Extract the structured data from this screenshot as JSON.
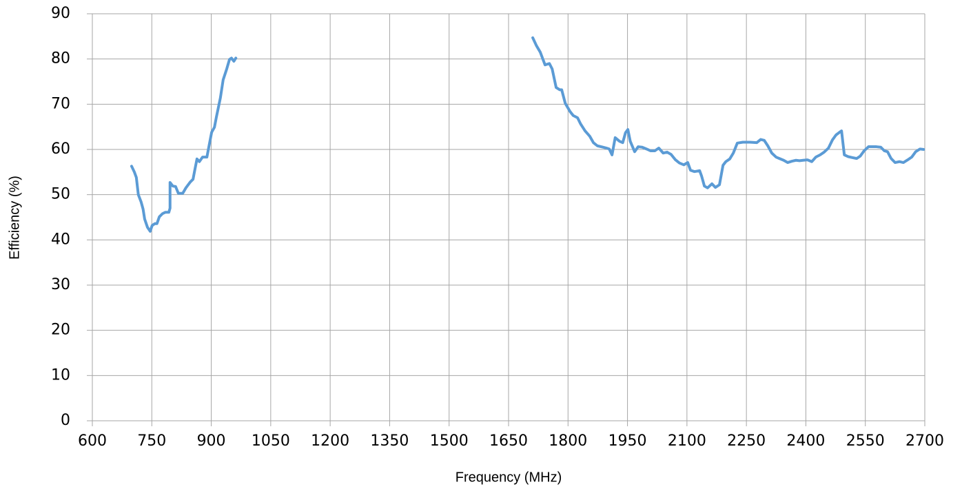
{
  "chart_data": {
    "type": "line",
    "xlabel": "Frequency (MHz)",
    "ylabel": "Efficiency (%)",
    "xlim": [
      600,
      2700
    ],
    "xticks": [
      600,
      750,
      900,
      1050,
      1200,
      1350,
      1500,
      1650,
      1800,
      1950,
      2100,
      2250,
      2400,
      2550,
      2700
    ],
    "ylim": [
      0,
      90
    ],
    "yticks": [
      0,
      10,
      20,
      30,
      40,
      50,
      60,
      70,
      80,
      90
    ],
    "grid": true,
    "x": [
      699,
      706,
      711,
      716,
      723,
      728,
      732,
      739,
      746,
      751,
      758,
      763,
      769,
      777,
      784,
      793,
      796,
      796,
      803,
      810,
      817,
      828,
      836,
      847,
      854,
      859,
      864,
      870,
      878,
      889,
      894,
      901,
      908,
      913,
      918,
      923,
      930,
      939,
      946,
      951,
      957,
      962,
      null,
      1711,
      1720,
      1730,
      1742,
      1753,
      1760,
      1770,
      1779,
      1784,
      1793,
      1805,
      1813,
      1824,
      1832,
      1843,
      1855,
      1864,
      1874,
      1888,
      1897,
      1904,
      1911,
      1919,
      1930,
      1938,
      1945,
      1951,
      1957,
      1968,
      1977,
      1987,
      1998,
      2008,
      2019,
      2029,
      2040,
      2050,
      2060,
      2071,
      2081,
      2092,
      2102,
      2109,
      2119,
      2132,
      2137,
      2144,
      2152,
      2163,
      2172,
      2182,
      2191,
      2198,
      2208,
      2217,
      2227,
      2241,
      2259,
      2276,
      2286,
      2295,
      2304,
      2314,
      2325,
      2333,
      2344,
      2354,
      2365,
      2375,
      2384,
      2393,
      2404,
      2415,
      2425,
      2436,
      2446,
      2457,
      2467,
      2476,
      2485,
      2490,
      2497,
      2507,
      2517,
      2528,
      2537,
      2547,
      2558,
      2568,
      2578,
      2589,
      2598,
      2606,
      2615,
      2625,
      2636,
      2646,
      2657,
      2667,
      2677,
      2688,
      2697
    ],
    "series": [
      {
        "name": "Efficiency",
        "color": "#5b9bd5",
        "values": [
          56.3,
          55,
          53.8,
          50,
          48.4,
          46.8,
          44.6,
          42.8,
          41.9,
          43.2,
          43.6,
          43.6,
          45.1,
          45.8,
          46.1,
          46.1,
          47,
          52.7,
          51.9,
          51.8,
          50.3,
          50.3,
          51.5,
          52.8,
          53.4,
          55.7,
          57.9,
          57.3,
          58.3,
          58.3,
          60.6,
          63.8,
          64.9,
          67.2,
          69.3,
          71.4,
          75.4,
          77.8,
          79.9,
          80.2,
          79.5,
          80.2,
          null,
          84.7,
          83,
          81.5,
          78.7,
          79,
          77.8,
          73.7,
          73.2,
          73.2,
          70.2,
          68.4,
          67.5,
          67,
          65.6,
          64.1,
          62.9,
          61.5,
          60.8,
          60.5,
          60.3,
          60.1,
          58.8,
          62.6,
          61.8,
          61.5,
          63.7,
          64.4,
          61.8,
          59.5,
          60.6,
          60.5,
          60.1,
          59.7,
          59.7,
          60.3,
          59.2,
          59.4,
          58.9,
          57.7,
          57,
          56.6,
          57.1,
          55.4,
          55.1,
          55.3,
          54.1,
          51.9,
          51.5,
          52.4,
          51.6,
          52.2,
          56.5,
          57.3,
          57.9,
          59.2,
          61.4,
          61.6,
          61.6,
          61.5,
          62.2,
          62,
          60.8,
          59.2,
          58.3,
          58,
          57.6,
          57.1,
          57.4,
          57.6,
          57.5,
          57.6,
          57.7,
          57.3,
          58.3,
          58.8,
          59.4,
          60.3,
          62.1,
          63.2,
          63.8,
          64.1,
          58.8,
          58.4,
          58.2,
          58,
          58.5,
          59.7,
          60.6,
          60.6,
          60.6,
          60.5,
          59.7,
          59.5,
          58,
          57.1,
          57.3,
          57.1,
          57.7,
          58.3,
          59.5,
          60.1,
          60
        ]
      }
    ]
  }
}
